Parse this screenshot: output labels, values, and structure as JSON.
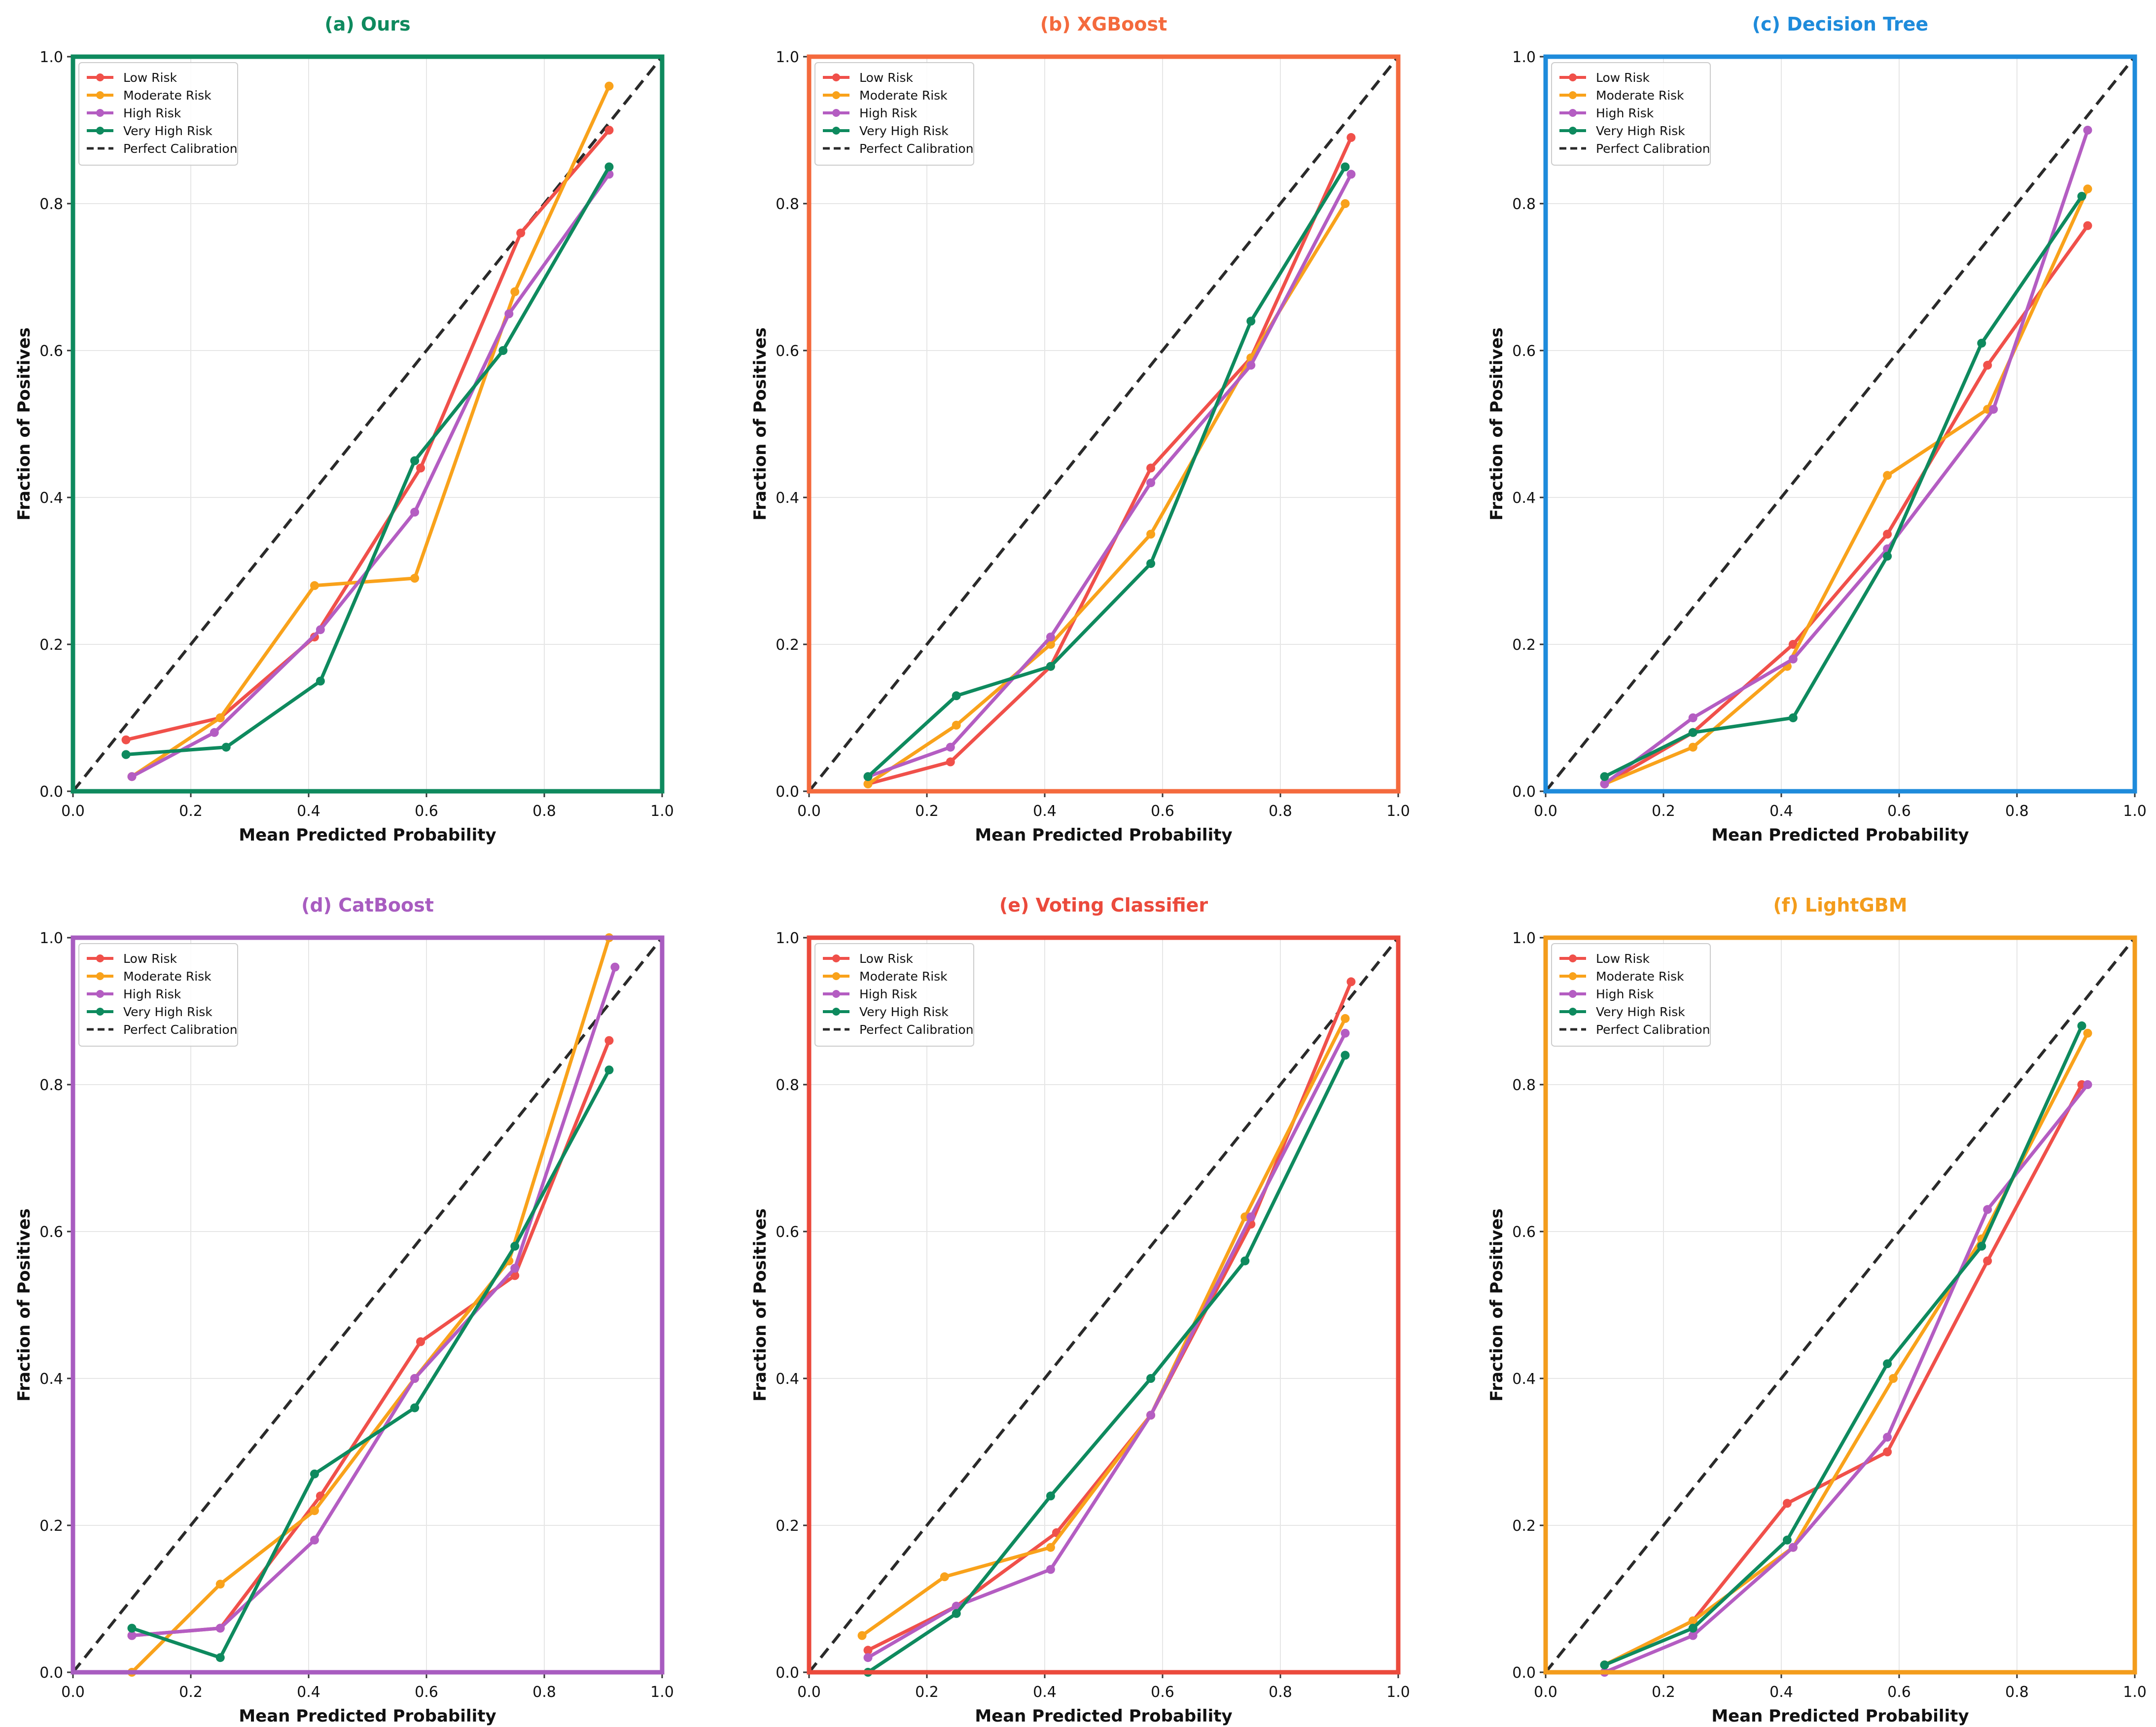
{
  "figure": {
    "series_names": [
      "Low Risk",
      "Moderate Risk",
      "High Risk",
      "Very High Risk"
    ],
    "reference_name": "Perfect Calibration",
    "series_colors": [
      "#F0504A",
      "#F9A21B",
      "#B45DC2",
      "#0E8A5E"
    ],
    "reference_color": "#2A2A2A"
  },
  "chart_data": [
    {
      "type": "line",
      "title": "(a) Ours",
      "title_color": "#0E8A5E",
      "frame_color": "#0E8A5E",
      "xlabel": "Mean Predicted Probability",
      "ylabel": "Fraction of Positives",
      "xlim": [
        0,
        1
      ],
      "ylim": [
        0,
        1
      ],
      "xticks": [
        "0.0",
        "0.2",
        "0.4",
        "0.6",
        "0.8",
        "1.0"
      ],
      "yticks": [
        "0.0",
        "0.2",
        "0.4",
        "0.6",
        "0.8",
        "1.0"
      ],
      "grid": true,
      "legend": "top-left",
      "series": [
        {
          "name": "Low Risk",
          "x": [
            0.09,
            0.25,
            0.41,
            0.59,
            0.76,
            0.91
          ],
          "y": [
            0.07,
            0.1,
            0.21,
            0.44,
            0.76,
            0.9
          ]
        },
        {
          "name": "Moderate Risk",
          "x": [
            0.1,
            0.25,
            0.41,
            0.58,
            0.75,
            0.91
          ],
          "y": [
            0.02,
            0.1,
            0.28,
            0.29,
            0.68,
            0.96
          ]
        },
        {
          "name": "High Risk",
          "x": [
            0.1,
            0.24,
            0.42,
            0.58,
            0.74,
            0.91
          ],
          "y": [
            0.02,
            0.08,
            0.22,
            0.38,
            0.65,
            0.84
          ]
        },
        {
          "name": "Very High Risk",
          "x": [
            0.09,
            0.26,
            0.42,
            0.58,
            0.73,
            0.91
          ],
          "y": [
            0.05,
            0.06,
            0.15,
            0.45,
            0.6,
            0.85
          ]
        }
      ]
    },
    {
      "type": "line",
      "title": "(b) XGBoost",
      "title_color": "#F46A3D",
      "frame_color": "#F46A3D",
      "xlabel": "Mean Predicted Probability",
      "ylabel": "Fraction of Positives",
      "xlim": [
        0,
        1
      ],
      "ylim": [
        0,
        1
      ],
      "xticks": [
        "0.0",
        "0.2",
        "0.4",
        "0.6",
        "0.8",
        "1.0"
      ],
      "yticks": [
        "0.0",
        "0.2",
        "0.4",
        "0.6",
        "0.8",
        "1.0"
      ],
      "grid": true,
      "legend": "top-left",
      "series": [
        {
          "name": "Low Risk",
          "x": [
            0.1,
            0.24,
            0.41,
            0.58,
            0.75,
            0.92
          ],
          "y": [
            0.01,
            0.04,
            0.17,
            0.44,
            0.59,
            0.89
          ]
        },
        {
          "name": "Moderate Risk",
          "x": [
            0.1,
            0.25,
            0.41,
            0.58,
            0.75,
            0.91
          ],
          "y": [
            0.01,
            0.09,
            0.2,
            0.35,
            0.59,
            0.8
          ]
        },
        {
          "name": "High Risk",
          "x": [
            0.1,
            0.24,
            0.41,
            0.58,
            0.75,
            0.92
          ],
          "y": [
            0.02,
            0.06,
            0.21,
            0.42,
            0.58,
            0.84
          ]
        },
        {
          "name": "Very High Risk",
          "x": [
            0.1,
            0.25,
            0.41,
            0.58,
            0.75,
            0.91
          ],
          "y": [
            0.02,
            0.13,
            0.17,
            0.31,
            0.64,
            0.85
          ]
        }
      ]
    },
    {
      "type": "line",
      "title": "(c) Decision Tree",
      "title_color": "#1E8BDB",
      "frame_color": "#1E8BDB",
      "xlabel": "Mean Predicted Probability",
      "ylabel": "Fraction of Positives",
      "xlim": [
        0,
        1
      ],
      "ylim": [
        0,
        1
      ],
      "xticks": [
        "0.0",
        "0.2",
        "0.4",
        "0.6",
        "0.8",
        "1.0"
      ],
      "yticks": [
        "0.0",
        "0.2",
        "0.4",
        "0.6",
        "0.8",
        "1.0"
      ],
      "grid": true,
      "legend": "top-left",
      "series": [
        {
          "name": "Low Risk",
          "x": [
            0.1,
            0.25,
            0.42,
            0.58,
            0.75,
            0.92
          ],
          "y": [
            0.01,
            0.08,
            0.2,
            0.35,
            0.58,
            0.77
          ]
        },
        {
          "name": "Moderate Risk",
          "x": [
            0.1,
            0.25,
            0.41,
            0.58,
            0.75,
            0.92
          ],
          "y": [
            0.01,
            0.06,
            0.17,
            0.43,
            0.52,
            0.82
          ]
        },
        {
          "name": "High Risk",
          "x": [
            0.1,
            0.25,
            0.42,
            0.58,
            0.76,
            0.92
          ],
          "y": [
            0.01,
            0.1,
            0.18,
            0.33,
            0.52,
            0.9
          ]
        },
        {
          "name": "Very High Risk",
          "x": [
            0.1,
            0.25,
            0.42,
            0.58,
            0.74,
            0.91
          ],
          "y": [
            0.02,
            0.08,
            0.1,
            0.32,
            0.61,
            0.81
          ]
        }
      ]
    },
    {
      "type": "line",
      "title": "(d) CatBoost",
      "title_color": "#A85CC0",
      "frame_color": "#A85CC0",
      "xlabel": "Mean Predicted Probability",
      "ylabel": "Fraction of Positives",
      "xlim": [
        0,
        1
      ],
      "ylim": [
        0,
        1
      ],
      "xticks": [
        "0.0",
        "0.2",
        "0.4",
        "0.6",
        "0.8",
        "1.0"
      ],
      "yticks": [
        "0.0",
        "0.2",
        "0.4",
        "0.6",
        "0.8",
        "1.0"
      ],
      "grid": true,
      "legend": "top-left",
      "series": [
        {
          "name": "Low Risk",
          "x": [
            0.1,
            0.25,
            0.42,
            0.59,
            0.75,
            0.91
          ],
          "y": [
            0.05,
            0.06,
            0.24,
            0.45,
            0.54,
            0.86
          ]
        },
        {
          "name": "Moderate Risk",
          "x": [
            0.1,
            0.25,
            0.41,
            0.58,
            0.74,
            0.91
          ],
          "y": [
            0.0,
            0.12,
            0.22,
            0.4,
            0.56,
            1.0
          ]
        },
        {
          "name": "High Risk",
          "x": [
            0.1,
            0.25,
            0.41,
            0.58,
            0.75,
            0.92
          ],
          "y": [
            0.05,
            0.06,
            0.18,
            0.4,
            0.55,
            0.96
          ]
        },
        {
          "name": "Very High Risk",
          "x": [
            0.1,
            0.25,
            0.41,
            0.58,
            0.75,
            0.91
          ],
          "y": [
            0.06,
            0.02,
            0.27,
            0.36,
            0.58,
            0.82
          ]
        }
      ]
    },
    {
      "type": "line",
      "title": "(e) Voting Classifier",
      "title_color": "#EB4A3C",
      "frame_color": "#EB4A3C",
      "xlabel": "Mean Predicted Probability",
      "ylabel": "Fraction of Positives",
      "xlim": [
        0,
        1
      ],
      "ylim": [
        0,
        1
      ],
      "xticks": [
        "0.0",
        "0.2",
        "0.4",
        "0.6",
        "0.8",
        "1.0"
      ],
      "yticks": [
        "0.0",
        "0.2",
        "0.4",
        "0.6",
        "0.8",
        "1.0"
      ],
      "grid": true,
      "legend": "top-left",
      "series": [
        {
          "name": "Low Risk",
          "x": [
            0.1,
            0.25,
            0.42,
            0.58,
            0.75,
            0.92
          ],
          "y": [
            0.03,
            0.09,
            0.19,
            0.35,
            0.61,
            0.94
          ]
        },
        {
          "name": "Moderate Risk",
          "x": [
            0.09,
            0.23,
            0.41,
            0.58,
            0.74,
            0.91
          ],
          "y": [
            0.05,
            0.13,
            0.17,
            0.35,
            0.62,
            0.89
          ]
        },
        {
          "name": "High Risk",
          "x": [
            0.1,
            0.25,
            0.41,
            0.58,
            0.75,
            0.91
          ],
          "y": [
            0.02,
            0.09,
            0.14,
            0.35,
            0.62,
            0.87
          ]
        },
        {
          "name": "Very High Risk",
          "x": [
            0.1,
            0.25,
            0.41,
            0.58,
            0.74,
            0.91
          ],
          "y": [
            0.0,
            0.08,
            0.24,
            0.4,
            0.56,
            0.84
          ]
        }
      ]
    },
    {
      "type": "line",
      "title": "(f) LightGBM",
      "title_color": "#F39C1C",
      "frame_color": "#F39C1C",
      "xlabel": "Mean Predicted Probability",
      "ylabel": "Fraction of Positives",
      "xlim": [
        0,
        1
      ],
      "ylim": [
        0,
        1
      ],
      "xticks": [
        "0.0",
        "0.2",
        "0.4",
        "0.6",
        "0.8",
        "1.0"
      ],
      "yticks": [
        "0.0",
        "0.2",
        "0.4",
        "0.6",
        "0.8",
        "1.0"
      ],
      "grid": true,
      "legend": "top-left",
      "series": [
        {
          "name": "Low Risk",
          "x": [
            0.1,
            0.25,
            0.41,
            0.58,
            0.75,
            0.91
          ],
          "y": [
            0.01,
            0.07,
            0.23,
            0.3,
            0.56,
            0.8
          ]
        },
        {
          "name": "Moderate Risk",
          "x": [
            0.1,
            0.25,
            0.42,
            0.59,
            0.74,
            0.92
          ],
          "y": [
            0.01,
            0.07,
            0.17,
            0.4,
            0.59,
            0.87
          ]
        },
        {
          "name": "High Risk",
          "x": [
            0.1,
            0.25,
            0.42,
            0.58,
            0.75,
            0.92
          ],
          "y": [
            0.0,
            0.05,
            0.17,
            0.32,
            0.63,
            0.8
          ]
        },
        {
          "name": "Very High Risk",
          "x": [
            0.1,
            0.25,
            0.41,
            0.58,
            0.74,
            0.91
          ],
          "y": [
            0.01,
            0.06,
            0.18,
            0.42,
            0.58,
            0.88
          ]
        }
      ]
    }
  ]
}
